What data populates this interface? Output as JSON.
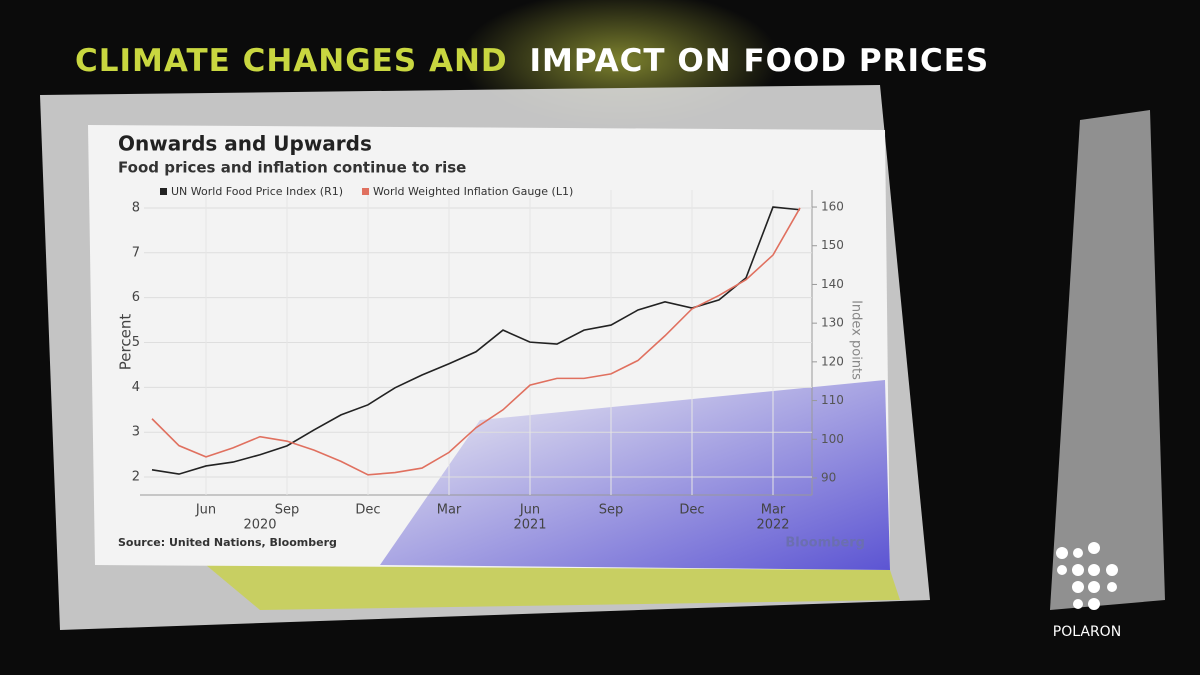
{
  "headline": {
    "highlight": "CLIMATE CHANGES AND",
    "rest": "IMPACT ON FOOD PRICES"
  },
  "brand": "POLARON",
  "chart_data": {
    "type": "line",
    "title": "Onwards and Upwards",
    "subtitle": "Food prices and inflation continue to rise",
    "source": "Source: United Nations, Bloomberg",
    "credit": "Bloomberg",
    "ylabel": "Percent",
    "y2label": "Index points",
    "categories": [
      null,
      null,
      "Jun",
      null,
      null,
      "Sep",
      null,
      null,
      "Dec",
      null,
      null,
      "Mar",
      null,
      null,
      "Jun",
      null,
      null,
      "Sep",
      null,
      null,
      "Dec",
      null,
      null,
      "Mar",
      null
    ],
    "category_years": [
      null,
      null,
      null,
      null,
      "2020",
      null,
      null,
      null,
      null,
      null,
      null,
      null,
      null,
      null,
      "2021",
      null,
      null,
      null,
      null,
      null,
      null,
      null,
      null,
      "2022",
      null
    ],
    "series": [
      {
        "name": "UN World Food Price Index (R1)",
        "color": "#222222",
        "axis": "y2",
        "values": [
          92.1,
          91.0,
          93.1,
          94.1,
          96.0,
          98.3,
          102.4,
          106.3,
          108.9,
          113.3,
          116.6,
          119.5,
          122.6,
          128.2,
          125.1,
          124.6,
          128.2,
          129.5,
          133.4,
          135.5,
          133.9,
          136.0,
          141.7,
          160.0,
          159.3
        ]
      },
      {
        "name": "World Weighted Inflation Gauge (L1)",
        "color": "#e0705f",
        "values": [
          3.3,
          2.7,
          2.45,
          2.65,
          2.9,
          2.8,
          2.6,
          2.35,
          2.05,
          2.1,
          2.2,
          2.55,
          3.1,
          3.5,
          4.05,
          4.2,
          4.2,
          4.3,
          4.6,
          5.15,
          5.75,
          6.05,
          6.4,
          6.95,
          8.0
        ]
      }
    ],
    "ylim": [
      1.6,
      8.4
    ],
    "yticks": [
      2,
      3,
      4,
      5,
      6,
      7,
      8
    ],
    "y2lim": [
      85.6,
      164.4
    ],
    "y2ticks": [
      90,
      100,
      110,
      120,
      130,
      140,
      150,
      160
    ],
    "grid": true,
    "legend": "top-left"
  }
}
